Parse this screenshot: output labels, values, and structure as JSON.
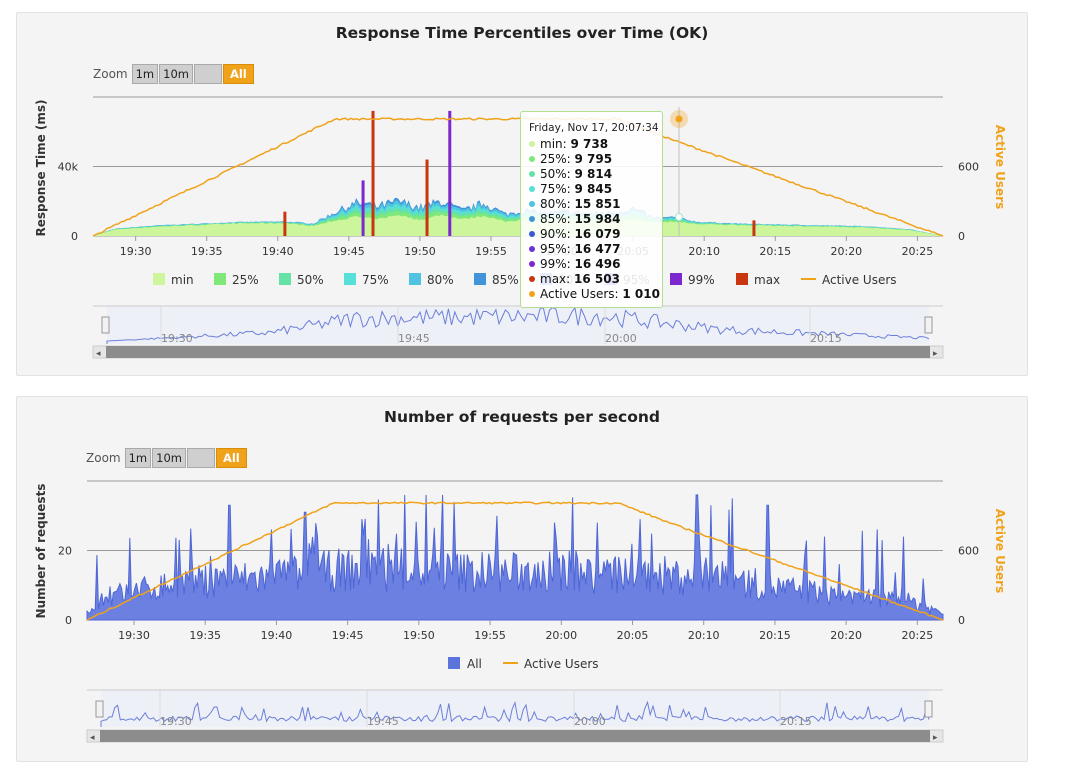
{
  "chart_data": [
    {
      "type": "area",
      "title": "Response Time Percentiles over Time (OK)",
      "ylabel": "Response Time (ms)",
      "y2label": "Active Users",
      "yticks": [
        "0",
        "40k"
      ],
      "y2ticks": [
        "0",
        "600"
      ],
      "ylim": [
        0,
        80000
      ],
      "y2lim": [
        0,
        1200
      ],
      "xticks": [
        "19:30",
        "19:35",
        "19:40",
        "19:45",
        "19:50",
        "19:55",
        "20:00",
        "20:05",
        "20:10",
        "20:15",
        "20:20",
        "20:25"
      ],
      "xrange_minutes": [
        26.5,
        86.3
      ],
      "zoom": {
        "label": "Zoom",
        "buttons": [
          "1m",
          "10m",
          "",
          "All"
        ],
        "active": "All"
      },
      "legend": [
        "min",
        "25%",
        "50%",
        "75%",
        "80%",
        "85%",
        "90%",
        "95%",
        "99%",
        "max",
        "Active Users"
      ],
      "series_colors": [
        "#cdf59c",
        "#7fe87b",
        "#66e2a6",
        "#56e0d8",
        "#4fc3df",
        "#4294d8",
        "#3b59d6",
        "#6a34d6",
        "#7d28cf",
        "#c8350e",
        "#f0a21b"
      ],
      "active_users": {
        "t": [
          26.5,
          43.5,
          63.5,
          67.5,
          86.3
        ],
        "v": [
          0,
          1010,
          1010,
          820,
          0
        ]
      },
      "response_time_shape": {
        "t": [
          26.5,
          28,
          31,
          34,
          37,
          40,
          42,
          43.5,
          45,
          46.5,
          48,
          49.5,
          51,
          52.5,
          54,
          55.5,
          57,
          58.5,
          60,
          61.5,
          63,
          64.5,
          66,
          67.5,
          69,
          72,
          75,
          78,
          81,
          84,
          86.3
        ],
        "min": [
          0,
          3800,
          5500,
          6500,
          7500,
          7600,
          6000,
          9000,
          11500,
          10000,
          12500,
          9500,
          12500,
          10000,
          12000,
          8500,
          10000,
          9000,
          9700,
          9000,
          9500,
          9700,
          8000,
          8500,
          7000,
          6500,
          6000,
          5500,
          5000,
          3500,
          0
        ],
        "p85": [
          0,
          4100,
          6000,
          7000,
          8000,
          8200,
          7000,
          13000,
          18000,
          16000,
          19000,
          15500,
          19000,
          14000,
          18000,
          12000,
          14000,
          12500,
          13500,
          12500,
          13000,
          15000,
          10000,
          10500,
          8000,
          7000,
          6500,
          6000,
          5500,
          3800,
          0
        ],
        "max_spikes": [
          {
            "t": 40,
            "v": 14000
          },
          {
            "t": 46.2,
            "v": 72000
          },
          {
            "t": 51.6,
            "v": 72000
          },
          {
            "t": 50,
            "v": 44000
          },
          {
            "t": 45.5,
            "v": 32000
          },
          {
            "t": 73,
            "v": 9000
          }
        ]
      },
      "tooltip": {
        "date": "Friday, Nov 17, 20:07:34",
        "rows": [
          {
            "label": "min:",
            "value": "9 738",
            "color": "#cdf59c"
          },
          {
            "label": "25%:",
            "value": "9 795",
            "color": "#7fe87b"
          },
          {
            "label": "50%:",
            "value": "9 814",
            "color": "#66e2a6"
          },
          {
            "label": "75%:",
            "value": "9 845",
            "color": "#56e0d8"
          },
          {
            "label": "80%:",
            "value": "15 851",
            "color": "#4fc3df"
          },
          {
            "label": "85%:",
            "value": "15 984",
            "color": "#4294d8"
          },
          {
            "label": "90%:",
            "value": "16 079",
            "color": "#3b59d6"
          },
          {
            "label": "95%:",
            "value": "16 477",
            "color": "#6a34d6"
          },
          {
            "label": "99%:",
            "value": "16 496",
            "color": "#7d28cf"
          },
          {
            "label": "max:",
            "value": "16 503",
            "color": "#c8350e"
          },
          {
            "label": "Active Users:",
            "value": "1 010",
            "color": "#f0a21b"
          }
        ]
      },
      "navigator_ticks": [
        "19:30",
        "19:45",
        "20:00",
        "20:15"
      ]
    },
    {
      "type": "area",
      "title": "Number of requests per second",
      "ylabel": "Number of requests",
      "y2label": "Active Users",
      "yticks": [
        "0",
        "20"
      ],
      "y2ticks": [
        "0",
        "600"
      ],
      "ylim": [
        0,
        40
      ],
      "y2lim": [
        0,
        1200
      ],
      "xticks": [
        "19:30",
        "19:35",
        "19:40",
        "19:45",
        "19:50",
        "19:55",
        "20:00",
        "20:05",
        "20:10",
        "20:15",
        "20:20",
        "20:25"
      ],
      "xrange_minutes": [
        26.2,
        86.3
      ],
      "zoom": {
        "label": "Zoom",
        "buttons": [
          "1m",
          "10m",
          "",
          "All"
        ],
        "active": "All"
      },
      "legend": [
        "All",
        "Active Users"
      ],
      "series_colors": [
        "#5b74db",
        "#f0a21b"
      ],
      "active_users": {
        "t": [
          26.2,
          43.5,
          63.5,
          67.5,
          86.3
        ],
        "v": [
          0,
          1010,
          1010,
          820,
          0
        ]
      },
      "requests_peaks": [
        {
          "t": 36.2,
          "v": 33
        },
        {
          "t": 41.5,
          "v": 31
        },
        {
          "t": 45.5,
          "v": 29
        },
        {
          "t": 48.5,
          "v": 36
        },
        {
          "t": 50,
          "v": 36
        },
        {
          "t": 51.2,
          "v": 36
        },
        {
          "t": 52,
          "v": 34
        },
        {
          "t": 55,
          "v": 30
        },
        {
          "t": 59,
          "v": 28
        },
        {
          "t": 62,
          "v": 28
        },
        {
          "t": 65,
          "v": 29
        },
        {
          "t": 69,
          "v": 36
        },
        {
          "t": 70,
          "v": 33
        },
        {
          "t": 71.5,
          "v": 35
        },
        {
          "t": 74,
          "v": 33
        },
        {
          "t": 78,
          "v": 24
        },
        {
          "t": 82,
          "v": 23
        },
        {
          "t": 83.5,
          "v": 24
        }
      ],
      "navigator_ticks": [
        "19:30",
        "19:45",
        "20:00",
        "20:15"
      ]
    }
  ]
}
